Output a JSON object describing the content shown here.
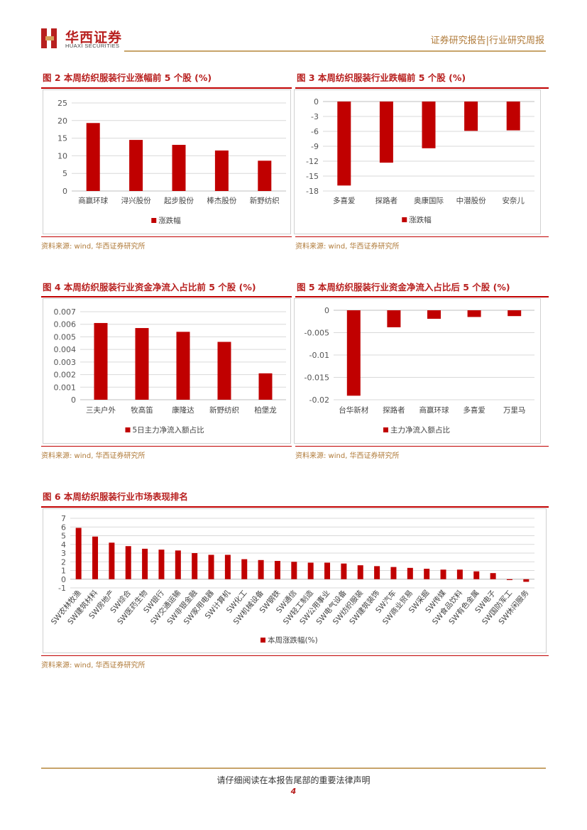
{
  "header": {
    "logo_cn": "华西证券",
    "logo_en": "HUAXI SECURITIES",
    "right_text": "证券研究报告|行业研究周报"
  },
  "figures": {
    "fig2": {
      "title": "图 2   本周纺织服装行业涨幅前 5 个股 (%)",
      "source": "资料来源: wind, 华西证券研究所"
    },
    "fig3": {
      "title": "图 3   本周纺织服装行业跌幅前 5 个股 (%)",
      "source": "资料来源: wind, 华西证券研究所"
    },
    "fig4": {
      "title": "图 4   本周纺织服装行业资金净流入占比前 5 个股 (%)",
      "source": "资料来源: wind, 华西证券研究所"
    },
    "fig5": {
      "title": "图 5   本周纺织服装行业资金净流入占比后 5 个股 (%)",
      "source": "资料来源: wind, 华西证券研究所"
    },
    "fig6": {
      "title": "图 6   本周纺织服装行业市场表现排名",
      "source": "资料来源: wind, 华西证券研究所"
    }
  },
  "colors": {
    "bar": "#c00000",
    "accent": "#b8201f",
    "gold": "#c7a46a"
  },
  "chart_data": [
    {
      "id": "fig2",
      "type": "bar",
      "categories": [
        "商赢环球",
        "浔兴股份",
        "起步股份",
        "棒杰股份",
        "新野纺织"
      ],
      "series": [
        {
          "name": "涨跌幅",
          "values": [
            19.3,
            14.5,
            13.1,
            11.5,
            8.6
          ]
        }
      ],
      "ylim": [
        0,
        25
      ],
      "yticks": [
        "0",
        "5",
        "10",
        "15",
        "20",
        "25"
      ],
      "ytick_values": [
        0,
        5,
        10,
        15,
        20,
        25
      ],
      "legend": "bottom"
    },
    {
      "id": "fig3",
      "type": "bar",
      "categories": [
        "多喜爱",
        "探路者",
        "奥康国际",
        "中潜股份",
        "安奈儿"
      ],
      "series": [
        {
          "name": "涨跌幅",
          "values": [
            -16.9,
            -12.3,
            -9.4,
            -5.9,
            -5.8
          ]
        }
      ],
      "ylim": [
        -18,
        0
      ],
      "yticks": [
        "0",
        "-3",
        "-6",
        "-9",
        "-12",
        "-15",
        "-18"
      ],
      "ytick_values": [
        0,
        -3,
        -6,
        -9,
        -12,
        -15,
        -18
      ],
      "legend": "bottom"
    },
    {
      "id": "fig4",
      "type": "bar",
      "categories": [
        "三夫户外",
        "牧高笛",
        "康隆达",
        "新野纺织",
        "柏堡龙"
      ],
      "series": [
        {
          "name": "5日主力净流入额占比",
          "values": [
            0.0061,
            0.0057,
            0.0054,
            0.0046,
            0.0021
          ]
        }
      ],
      "ylim": [
        0,
        0.007
      ],
      "yticks": [
        "0",
        "0.001",
        "0.002",
        "0.003",
        "0.004",
        "0.005",
        "0.006",
        "0.007"
      ],
      "ytick_values": [
        0,
        0.001,
        0.002,
        0.003,
        0.004,
        0.005,
        0.006,
        0.007
      ],
      "legend": "bottom"
    },
    {
      "id": "fig5",
      "type": "bar",
      "categories": [
        "台华新材",
        "探路者",
        "商赢环球",
        "多喜爱",
        "万里马"
      ],
      "series": [
        {
          "name": "主力净流入额占比",
          "values": [
            -0.0191,
            -0.0038,
            -0.0019,
            -0.0015,
            -0.0013
          ]
        }
      ],
      "ylim": [
        -0.02,
        0
      ],
      "yticks": [
        "0",
        "-0.005",
        "-0.01",
        "-0.015",
        "-0.02"
      ],
      "ytick_values": [
        0,
        -0.005,
        -0.01,
        -0.015,
        -0.02
      ],
      "legend": "bottom"
    },
    {
      "id": "fig6",
      "type": "bar",
      "categories": [
        "SW农林牧渔",
        "SW建筑材料",
        "SW房地产",
        "SW综合",
        "SW医药生物",
        "SW银行",
        "SW交通运输",
        "SW非银金融",
        "SW家用电器",
        "SW计算机",
        "SW化工",
        "SW机械设备",
        "SW钢铁",
        "SW通信",
        "SW轻工制造",
        "SW公用事业",
        "SW电气设备",
        "SW纺织服装",
        "SW建筑装饰",
        "SW汽车",
        "SW商业贸易",
        "SW采掘",
        "SW传媒",
        "SW食品饮料",
        "SW有色金属",
        "SW电子",
        "SW国防军工",
        "SW休闲服务"
      ],
      "series": [
        {
          "name": "本周涨跌幅(%)",
          "values": [
            5.9,
            4.9,
            4.2,
            3.8,
            3.5,
            3.4,
            3.3,
            3.0,
            2.8,
            2.8,
            2.3,
            2.2,
            2.1,
            2.0,
            1.9,
            1.9,
            1.8,
            1.6,
            1.5,
            1.4,
            1.3,
            1.2,
            1.1,
            1.1,
            0.9,
            0.7,
            -0.1,
            -0.3
          ]
        }
      ],
      "ylim": [
        -1,
        7
      ],
      "yticks": [
        "-1",
        "0",
        "1",
        "2",
        "3",
        "4",
        "5",
        "6",
        "7"
      ],
      "ytick_values": [
        -1,
        0,
        1,
        2,
        3,
        4,
        5,
        6,
        7
      ],
      "legend": "bottom"
    }
  ],
  "footer": {
    "disclaimer": "请仔细阅读在本报告尾部的重要法律声明",
    "page_number": "4"
  }
}
